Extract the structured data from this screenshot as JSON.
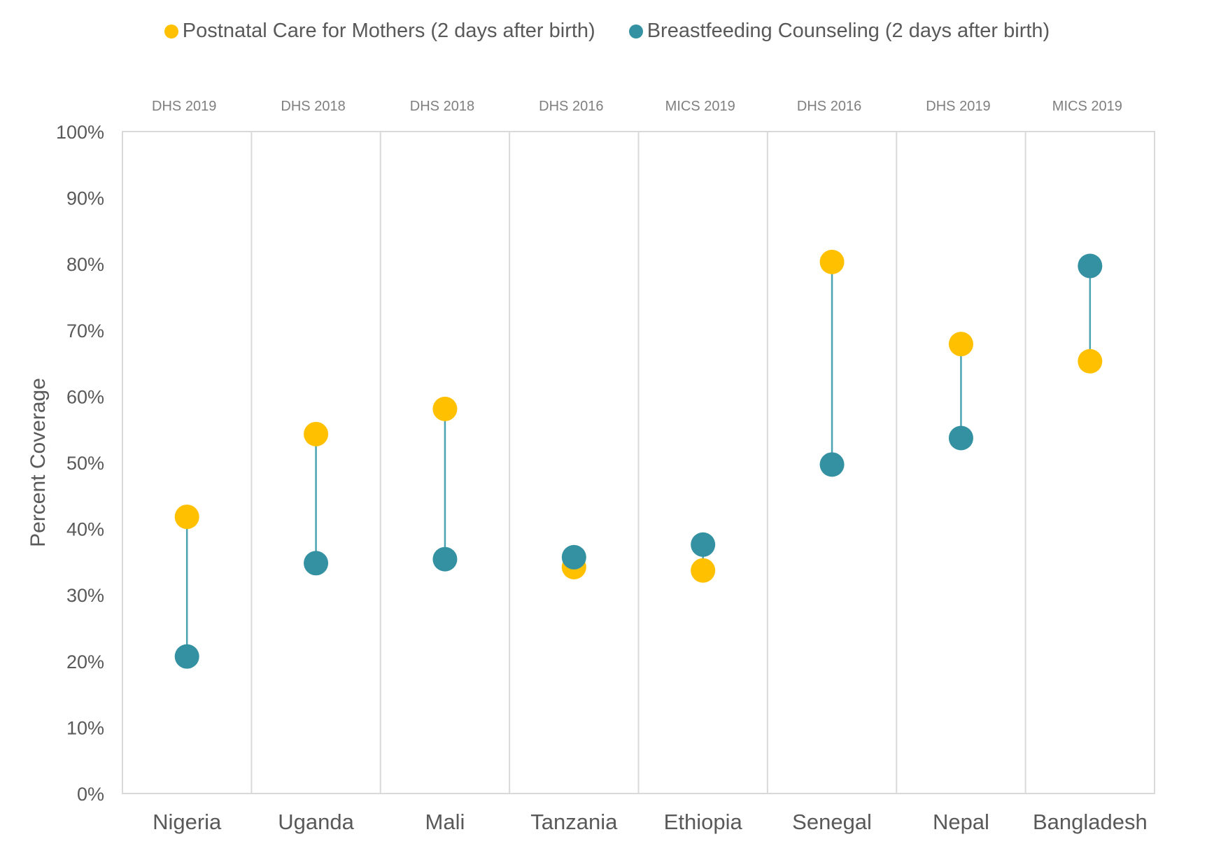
{
  "chart_data": {
    "type": "scatter",
    "subtype": "dumbbell",
    "title": "",
    "xlabel": "",
    "ylabel": "Percent Coverage",
    "ylim": [
      0,
      100
    ],
    "y_ticks": [
      0,
      10,
      20,
      30,
      40,
      50,
      60,
      70,
      80,
      90,
      100
    ],
    "y_tick_labels": [
      "0%",
      "10%",
      "20%",
      "30%",
      "40%",
      "50%",
      "60%",
      "70%",
      "80%",
      "90%",
      "100%"
    ],
    "grid": "vertical category dividers",
    "legend_position": "top-center",
    "categories": [
      "Nigeria",
      "Uganda",
      "Mali",
      "Tanzania",
      "Ethiopia",
      "Senegal",
      "Nepal",
      "Bangladesh"
    ],
    "survey_labels": [
      "DHS 2019",
      "DHS 2018",
      "DHS 2018",
      "DHS 2016",
      "MICS 2019",
      "DHS 2016",
      "DHS 2019",
      "MICS 2019"
    ],
    "series": [
      {
        "name": "Postnatal Care for Mothers (2 days after birth)",
        "color": "#FFC000",
        "values": [
          41.8,
          54.3,
          58.1,
          34.2,
          33.7,
          80.3,
          67.9,
          65.3
        ]
      },
      {
        "name": "Breastfeeding Counseling (2 days after birth)",
        "color": "#3391A2",
        "values": [
          20.7,
          34.8,
          35.4,
          35.7,
          37.6,
          49.7,
          53.7,
          79.7
        ]
      }
    ],
    "connector_color": "#4BA3B2"
  }
}
